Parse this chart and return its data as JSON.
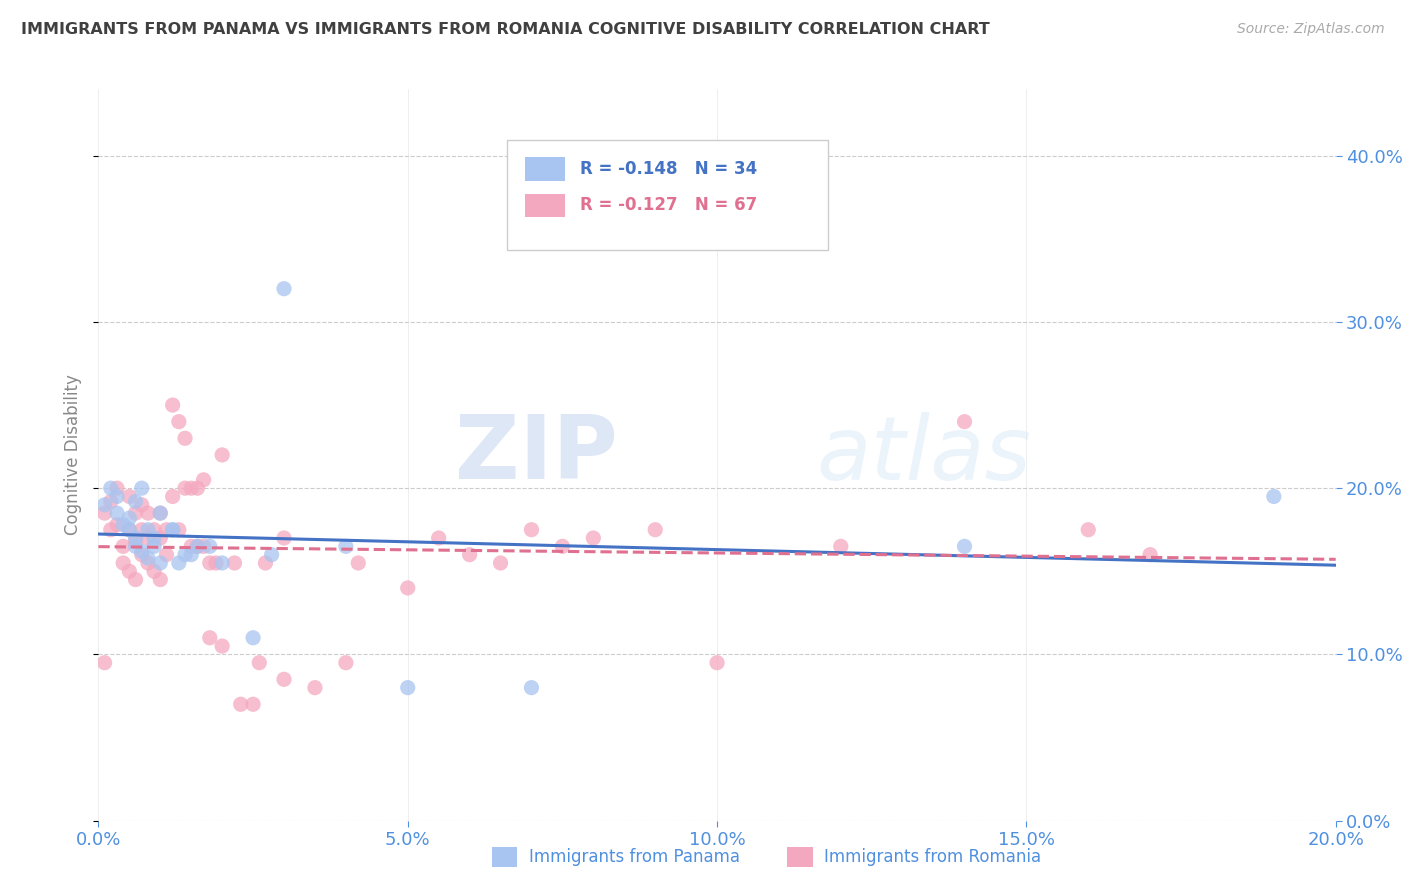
{
  "title": "IMMIGRANTS FROM PANAMA VS IMMIGRANTS FROM ROMANIA COGNITIVE DISABILITY CORRELATION CHART",
  "source": "Source: ZipAtlas.com",
  "xlabel_panama": "Immigrants from Panama",
  "xlabel_romania": "Immigrants from Romania",
  "ylabel": "Cognitive Disability",
  "legend_panama": {
    "R": "-0.148",
    "N": "34"
  },
  "legend_romania": {
    "R": "-0.127",
    "N": "67"
  },
  "xlim": [
    0.0,
    0.2
  ],
  "ylim": [
    0.0,
    0.44
  ],
  "yticks": [
    0.0,
    0.1,
    0.2,
    0.3,
    0.4
  ],
  "xticks": [
    0.0,
    0.05,
    0.1,
    0.15,
    0.2
  ],
  "color_panama": "#a8c4f0",
  "color_romania": "#f4a8c0",
  "color_trend_panama": "#4472c4",
  "color_trend_romania": "#e07090",
  "watermark_zip": "ZIP",
  "watermark_atlas": "atlas",
  "title_color": "#404040",
  "axis_label_color": "#5090e0",
  "panama_x": [
    0.001,
    0.002,
    0.003,
    0.003,
    0.004,
    0.005,
    0.005,
    0.006,
    0.006,
    0.006,
    0.007,
    0.007,
    0.008,
    0.008,
    0.009,
    0.009,
    0.01,
    0.01,
    0.012,
    0.012,
    0.013,
    0.014,
    0.015,
    0.016,
    0.018,
    0.02,
    0.025,
    0.028,
    0.03,
    0.04,
    0.05,
    0.07,
    0.14,
    0.19
  ],
  "panama_y": [
    0.19,
    0.2,
    0.185,
    0.195,
    0.178,
    0.182,
    0.175,
    0.17,
    0.192,
    0.165,
    0.2,
    0.162,
    0.175,
    0.158,
    0.17,
    0.165,
    0.155,
    0.185,
    0.175,
    0.175,
    0.155,
    0.16,
    0.16,
    0.165,
    0.165,
    0.155,
    0.11,
    0.16,
    0.32,
    0.165,
    0.08,
    0.08,
    0.165,
    0.195
  ],
  "romania_x": [
    0.001,
    0.001,
    0.002,
    0.002,
    0.003,
    0.003,
    0.004,
    0.004,
    0.005,
    0.005,
    0.005,
    0.006,
    0.006,
    0.006,
    0.007,
    0.007,
    0.007,
    0.008,
    0.008,
    0.008,
    0.009,
    0.009,
    0.01,
    0.01,
    0.01,
    0.011,
    0.011,
    0.012,
    0.012,
    0.013,
    0.013,
    0.014,
    0.014,
    0.015,
    0.015,
    0.016,
    0.016,
    0.017,
    0.017,
    0.018,
    0.018,
    0.019,
    0.02,
    0.02,
    0.022,
    0.023,
    0.025,
    0.026,
    0.027,
    0.03,
    0.03,
    0.035,
    0.04,
    0.042,
    0.05,
    0.055,
    0.06,
    0.065,
    0.07,
    0.075,
    0.08,
    0.09,
    0.1,
    0.12,
    0.14,
    0.16,
    0.17
  ],
  "romania_y": [
    0.185,
    0.095,
    0.192,
    0.175,
    0.2,
    0.178,
    0.165,
    0.155,
    0.195,
    0.175,
    0.15,
    0.185,
    0.168,
    0.145,
    0.19,
    0.175,
    0.16,
    0.185,
    0.17,
    0.155,
    0.175,
    0.15,
    0.185,
    0.17,
    0.145,
    0.175,
    0.16,
    0.25,
    0.195,
    0.24,
    0.175,
    0.23,
    0.2,
    0.2,
    0.165,
    0.2,
    0.165,
    0.165,
    0.205,
    0.155,
    0.11,
    0.155,
    0.22,
    0.105,
    0.155,
    0.07,
    0.07,
    0.095,
    0.155,
    0.17,
    0.085,
    0.08,
    0.095,
    0.155,
    0.14,
    0.17,
    0.16,
    0.155,
    0.175,
    0.165,
    0.17,
    0.175,
    0.095,
    0.165,
    0.24,
    0.175,
    0.16
  ]
}
